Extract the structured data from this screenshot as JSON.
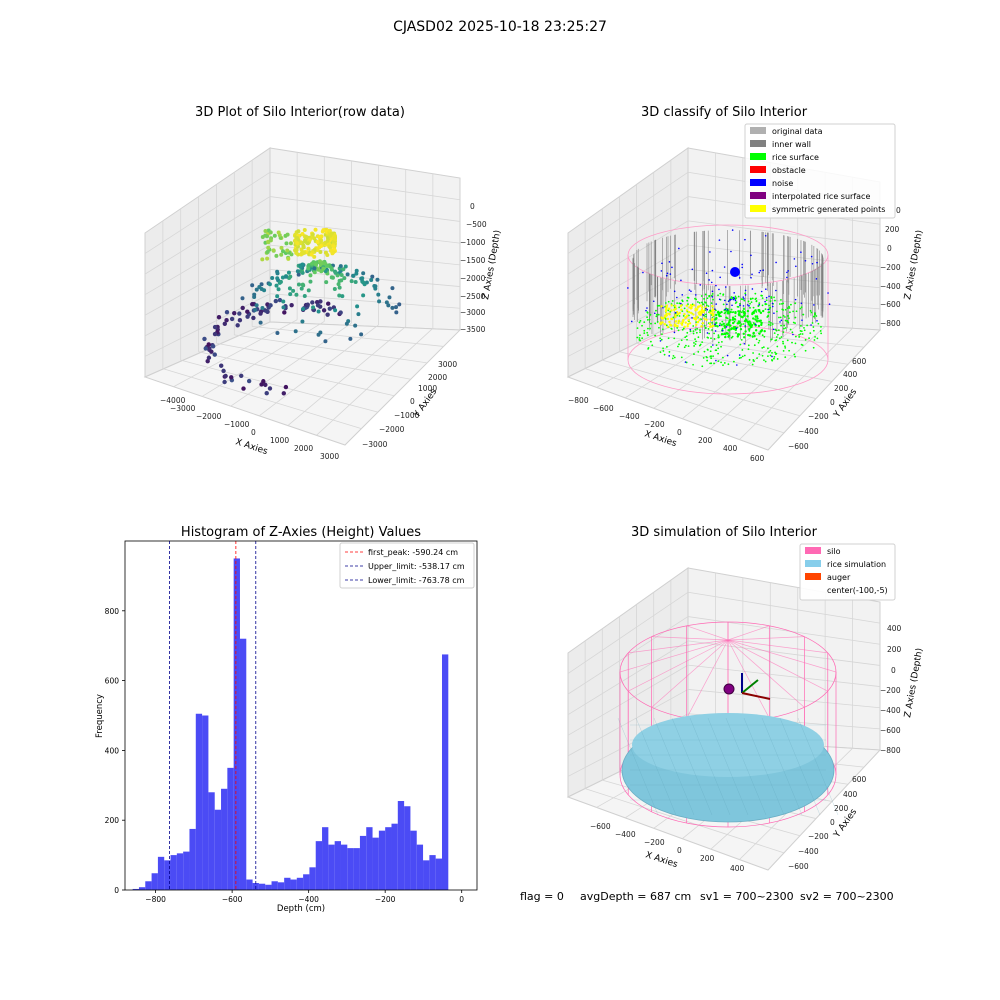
{
  "figure_title": "CJASD02 2025-10-18 23:25:27",
  "colors": {
    "original": "#b0b0b0",
    "inner_wall": "#808080",
    "rice_surface": "#00ff00",
    "obstacle": "#ff0000",
    "noise": "#0000ff",
    "interpolated": "#800080",
    "symmetric": "#ffff00",
    "silo": "#ff69b4",
    "rice_sim": "#87ceeb",
    "auger": "#ff4500",
    "hist": "#4b4bf5"
  },
  "panel1": {
    "title": "3D Plot of Silo Interior(row data)",
    "xlabel": "X Axies",
    "ylabel": "Y Axies",
    "zlabel": "Z Axies (Depth)",
    "xticks": [
      "−4000",
      "−3000",
      "−2000",
      "−1000",
      "0",
      "1000",
      "2000",
      "3000"
    ],
    "yticks": [
      "−3000",
      "−2000",
      "−1000",
      "0",
      "1000",
      "2000",
      "3000"
    ],
    "zticks": [
      "0",
      "−500",
      "−1000",
      "−1500",
      "−2000",
      "−2500",
      "−3000",
      "−3500"
    ]
  },
  "panel2": {
    "title": "3D classify of Silo Interior",
    "xlabel": "X Axies",
    "ylabel": "Y Axies",
    "zlabel": "Z Axies (Depth)",
    "xticks": [
      "−800",
      "−600",
      "−400",
      "−200",
      "0",
      "200",
      "400",
      "600"
    ],
    "yticks": [
      "−600",
      "−400",
      "−200",
      "0",
      "200",
      "400",
      "600"
    ],
    "zticks": [
      "200",
      "0",
      "−200",
      "−400",
      "−600",
      "−800"
    ],
    "zticks_partial": "0",
    "legend": [
      {
        "label": "original data",
        "color": "#b0b0b0"
      },
      {
        "label": "inner wall",
        "color": "#808080"
      },
      {
        "label": "rice surface",
        "color": "#00ff00"
      },
      {
        "label": "obstacle",
        "color": "#ff0000"
      },
      {
        "label": "noise",
        "color": "#0000ff"
      },
      {
        "label": "interpolated rice surface",
        "color": "#800080"
      },
      {
        "label": "symmetric generated points",
        "color": "#ffff00"
      }
    ]
  },
  "panel4": {
    "title": "3D simulation of Silo Interior",
    "xlabel": "X Axies",
    "ylabel": "Y Axies",
    "zlabel": "Z Axies (Depth)",
    "xticks": [
      "−600",
      "−400",
      "−200",
      "0",
      "200",
      "400"
    ],
    "yticks": [
      "−600",
      "−400",
      "−200",
      "0",
      "200",
      "400",
      "600"
    ],
    "zticks": [
      "400",
      "200",
      "0",
      "−200",
      "−400",
      "−600",
      "−800"
    ],
    "legend": [
      {
        "label": "silo",
        "color": "#ff69b4"
      },
      {
        "label": "rice simulation",
        "color": "#87ceeb"
      },
      {
        "label": "auger",
        "color": "#ff4500"
      },
      {
        "label": "center(-100,-5)",
        "color": ""
      }
    ]
  },
  "footer": {
    "flag": "flag = 0",
    "avg": "avgDepth = 687 cm",
    "sv1": "sv1 = 700~2300",
    "sv2": "sv2 = 700~2300"
  },
  "chart_data": {
    "type": "bar",
    "title": "Histogram of Z-Axies (Height) Values",
    "xlabel": "Depth (cm)",
    "ylabel": "Frequency",
    "xlim": [
      -880,
      40
    ],
    "ylim": [
      0,
      1000
    ],
    "xticks": [
      -800,
      -600,
      -400,
      -200,
      0
    ],
    "xtick_labels": [
      "−800",
      "−600",
      "−400",
      "−200",
      "0"
    ],
    "yticks": [
      0,
      200,
      400,
      600,
      800
    ],
    "bin_start": -860,
    "bin_width": 16.5,
    "values": [
      3,
      8,
      25,
      48,
      95,
      85,
      100,
      105,
      110,
      175,
      505,
      500,
      280,
      230,
      290,
      350,
      950,
      720,
      30,
      20,
      18,
      15,
      25,
      22,
      35,
      30,
      35,
      45,
      65,
      140,
      180,
      130,
      140,
      130,
      120,
      120,
      155,
      180,
      150,
      170,
      180,
      190,
      255,
      240,
      170,
      130,
      85,
      100,
      90,
      675
    ],
    "bar_color": "#4b4bf5",
    "lines": [
      {
        "name": "first_peak: -590.24 cm",
        "x": -590.24,
        "color": "#ff0000"
      },
      {
        "name": "Upper_limit: -538.17 cm",
        "x": -538.17,
        "color": "#00008b"
      },
      {
        "name": "Lower_limit: -763.78 cm",
        "x": -763.78,
        "color": "#00008b"
      }
    ]
  }
}
